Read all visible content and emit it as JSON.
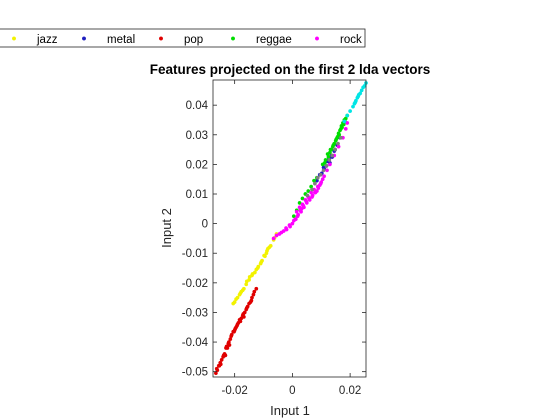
{
  "chart_data": {
    "type": "scatter",
    "title": "Features projected on the first 2 lda vectors",
    "xlabel": "Input 1",
    "ylabel": "Input 2",
    "xlim": [
      -0.0275,
      0.0255
    ],
    "ylim": [
      -0.0518,
      0.0485
    ],
    "xticks": [
      -0.02,
      0,
      0.02
    ],
    "xtick_labels": [
      "-0.02",
      "0",
      "0.02"
    ],
    "yticks": [
      -0.05,
      -0.04,
      -0.03,
      -0.02,
      -0.01,
      0,
      0.01,
      0.02,
      0.03,
      0.04
    ],
    "ytick_labels": [
      "-0.05",
      "-0.04",
      "-0.03",
      "-0.02",
      "-0.01",
      "0",
      "0.01",
      "0.02",
      "0.03",
      "0.04"
    ],
    "grid": false,
    "legend_position": "top, horizontal, above the plot",
    "legend_visible_entries": [
      "jazz",
      "metal",
      "pop",
      "reggae",
      "rock"
    ],
    "series": [
      {
        "name": "jazz",
        "color": "#f2f200",
        "marker": "point",
        "x": [
          -0.0055,
          -0.0065,
          -0.0075,
          -0.008,
          -0.0085,
          -0.009,
          -0.0095,
          -0.0105,
          -0.011,
          -0.012,
          -0.0125,
          -0.013,
          -0.014,
          -0.015,
          -0.016,
          -0.0168,
          -0.0172,
          -0.018,
          -0.0183,
          -0.019,
          -0.0195,
          -0.02,
          -0.0205,
          -0.0108,
          -0.0118,
          -0.0138,
          -0.0148,
          -0.0158,
          -0.0177,
          -0.0062,
          -0.0088,
          -0.0098
        ],
        "y": [
          -0.0035,
          -0.0055,
          -0.0075,
          -0.008,
          -0.0085,
          -0.01,
          -0.011,
          -0.0125,
          -0.0135,
          -0.015,
          -0.0155,
          -0.0165,
          -0.0175,
          -0.019,
          -0.0205,
          -0.022,
          -0.0225,
          -0.0235,
          -0.024,
          -0.025,
          -0.0255,
          -0.0265,
          -0.027,
          -0.013,
          -0.0145,
          -0.017,
          -0.018,
          -0.0195,
          -0.023,
          -0.0048,
          -0.0092,
          -0.0108
        ]
      },
      {
        "name": "metal",
        "color": "#1f1fbf",
        "marker": "point",
        "x": [
          0.0125,
          0.0135,
          0.012,
          0.0145,
          0.013,
          0.011,
          0.0102,
          0.0095,
          0.0085,
          0.0155,
          0.0165,
          0.0138,
          0.0118,
          0.0108,
          0.0148,
          0.0128
        ],
        "y": [
          0.0215,
          0.023,
          0.021,
          0.0245,
          0.0205,
          0.0185,
          0.017,
          0.0165,
          0.0145,
          0.0265,
          0.029,
          0.0225,
          0.0195,
          0.019,
          0.025,
          0.022
        ]
      },
      {
        "name": "pop",
        "color": "#e00000",
        "marker": "point",
        "x": [
          -0.0265,
          -0.026,
          -0.0255,
          -0.025,
          -0.0245,
          -0.024,
          -0.0235,
          -0.023,
          -0.0228,
          -0.0222,
          -0.022,
          -0.0215,
          -0.021,
          -0.0205,
          -0.02,
          -0.0198,
          -0.0195,
          -0.019,
          -0.0187,
          -0.018,
          -0.0177,
          -0.0172,
          -0.017,
          -0.0165,
          -0.016,
          -0.0155,
          -0.015,
          -0.0145,
          -0.014,
          -0.0135,
          -0.0132,
          -0.0125,
          -0.0262,
          -0.0248,
          -0.0232,
          -0.0218,
          -0.0202,
          -0.0192,
          -0.0183,
          -0.0168,
          -0.0158,
          -0.0142,
          -0.0212,
          -0.0225,
          -0.0238,
          -0.0253
        ],
        "y": [
          -0.0505,
          -0.0495,
          -0.048,
          -0.047,
          -0.046,
          -0.045,
          -0.044,
          -0.042,
          -0.0415,
          -0.0405,
          -0.04,
          -0.039,
          -0.0375,
          -0.0365,
          -0.036,
          -0.0355,
          -0.035,
          -0.034,
          -0.0335,
          -0.033,
          -0.032,
          -0.031,
          -0.0305,
          -0.03,
          -0.029,
          -0.028,
          -0.027,
          -0.0265,
          -0.025,
          -0.024,
          -0.023,
          -0.022,
          -0.049,
          -0.0475,
          -0.0445,
          -0.041,
          -0.0365,
          -0.0345,
          -0.0325,
          -0.0315,
          -0.0285,
          -0.026,
          -0.038,
          -0.042,
          -0.0445,
          -0.048
        ]
      },
      {
        "name": "reggae",
        "color": "#00dd00",
        "marker": "point",
        "x": [
          0.0105,
          0.0115,
          0.0125,
          0.013,
          0.0135,
          0.014,
          0.0145,
          0.015,
          0.0155,
          0.016,
          0.0165,
          0.017,
          0.0175,
          0.018,
          0.0185,
          0.019,
          0.0112,
          0.0122,
          0.0132,
          0.0142,
          0.0152,
          0.0162,
          0.0172,
          0.0182,
          0.0085,
          0.0075,
          0.0065,
          0.0055,
          0.0045,
          0.0035,
          0.0025,
          0.0015,
          0.0005,
          0.0178,
          0.0168,
          0.0158
        ],
        "y": [
          0.02,
          0.0215,
          0.0225,
          0.024,
          0.025,
          0.026,
          0.027,
          0.028,
          0.029,
          0.0305,
          0.0315,
          0.033,
          0.034,
          0.035,
          0.0355,
          0.0365,
          0.0205,
          0.0235,
          0.025,
          0.0265,
          0.0285,
          0.03,
          0.0325,
          0.0345,
          0.0155,
          0.0145,
          0.0125,
          0.011,
          0.01,
          0.0085,
          0.007,
          0.0045,
          0.0025,
          0.0335,
          0.032,
          0.0295
        ]
      },
      {
        "name": "rock",
        "color": "#ff00ff",
        "marker": "point",
        "x": [
          -0.0065,
          -0.0055,
          -0.0045,
          -0.003,
          -0.002,
          -0.001,
          0.0,
          0.001,
          0.002,
          0.003,
          0.004,
          0.005,
          0.006,
          0.007,
          0.008,
          0.0085,
          0.009,
          0.0095,
          0.01,
          0.0105,
          0.011,
          0.012,
          0.013,
          0.0145,
          0.016,
          0.0175,
          0.0185,
          0.019,
          0.0015,
          0.0025,
          0.0035,
          0.0045,
          0.0055,
          0.0065,
          0.0075,
          0.0028,
          0.0048,
          0.0068,
          0.0088,
          -0.0008,
          0.0005,
          0.0018,
          0.0038,
          0.0058,
          0.0078,
          0.0098,
          -0.0022,
          -0.0038,
          0.0012,
          0.0032
        ],
        "y": [
          -0.005,
          -0.004,
          -0.0035,
          -0.0025,
          -0.002,
          -0.0005,
          0.0,
          0.0015,
          0.003,
          0.004,
          0.0055,
          0.007,
          0.008,
          0.0095,
          0.0105,
          0.011,
          0.012,
          0.013,
          0.014,
          0.015,
          0.016,
          0.018,
          0.02,
          0.023,
          0.026,
          0.029,
          0.032,
          0.034,
          0.004,
          0.0055,
          0.0065,
          0.008,
          0.009,
          0.0105,
          0.0115,
          0.0045,
          0.0075,
          0.009,
          0.0125,
          -0.001,
          0.001,
          0.0025,
          0.006,
          0.0085,
          0.0105,
          0.0135,
          -0.0015,
          -0.003,
          0.0015,
          0.005
        ]
      },
      {
        "name": "",
        "color": "#00e5e5",
        "marker": "point",
        "x": [
          0.018,
          0.019,
          0.02,
          0.021,
          0.0215,
          0.022,
          0.0225,
          0.023,
          0.0235,
          0.024,
          0.0245,
          0.025,
          0.0255,
          0.0218,
          0.0228
        ],
        "y": [
          0.0345,
          0.0365,
          0.038,
          0.0395,
          0.0405,
          0.0415,
          0.0425,
          0.0435,
          0.044,
          0.045,
          0.046,
          0.0465,
          0.0475,
          0.041,
          0.043
        ]
      },
      {
        "name": "",
        "color": "#7f7f7f",
        "marker": "point",
        "x": [
          0.0088,
          0.0098,
          0.0108,
          0.0118,
          0.0128,
          0.0138,
          0.0148,
          0.0158,
          0.0168,
          0.0052,
          0.0068,
          0.0078
        ],
        "y": [
          0.0155,
          0.0165,
          0.018,
          0.0195,
          0.0215,
          0.023,
          0.025,
          0.027,
          0.029,
          0.0095,
          0.0115,
          0.0135
        ]
      }
    ]
  }
}
